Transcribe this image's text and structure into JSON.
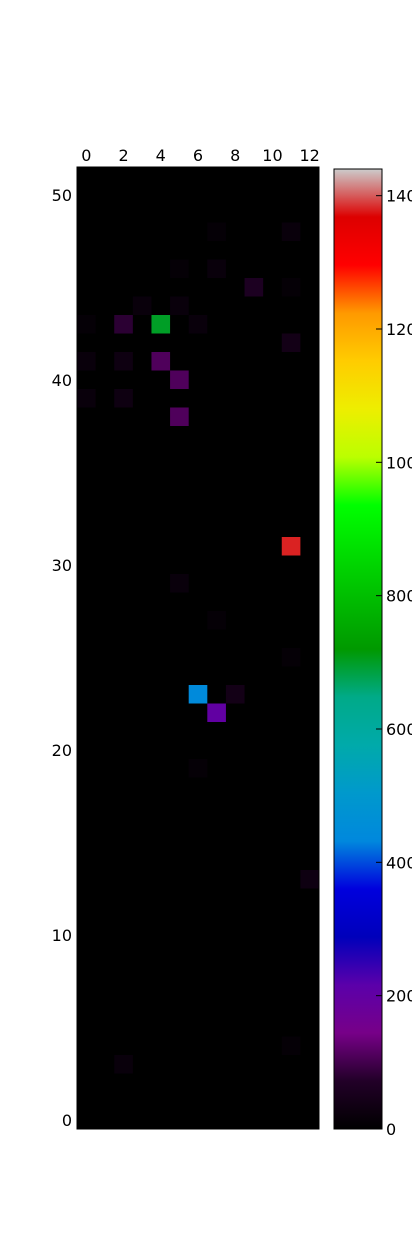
{
  "chart_data": [
    {
      "type": "heatmap",
      "title": "",
      "xlabel": "",
      "ylabel": "",
      "x_range": [
        -0.5,
        12.5
      ],
      "y_range": [
        -0.5,
        51.5
      ],
      "x_ticks": [
        "0",
        "2",
        "4",
        "6",
        "8",
        "10",
        "12"
      ],
      "y_ticks": [
        "0",
        "10",
        "20",
        "30",
        "40",
        "50"
      ],
      "x_tick_values": [
        0,
        2,
        4,
        6,
        8,
        10,
        12
      ],
      "y_tick_values": [
        0,
        10,
        20,
        30,
        40,
        50
      ],
      "origin": "lower",
      "x_axis_ticks_position": "top",
      "background_value": 0,
      "cells": [
        {
          "x": 7,
          "y": 48,
          "value": 10
        },
        {
          "x": 11,
          "y": 48,
          "value": 20
        },
        {
          "x": 5,
          "y": 46,
          "value": 10
        },
        {
          "x": 7,
          "y": 46,
          "value": 20
        },
        {
          "x": 9,
          "y": 45,
          "value": 60
        },
        {
          "x": 11,
          "y": 45,
          "value": 10
        },
        {
          "x": 3,
          "y": 44,
          "value": 20
        },
        {
          "x": 5,
          "y": 44,
          "value": 20
        },
        {
          "x": 0,
          "y": 43,
          "value": 10
        },
        {
          "x": 2,
          "y": 43,
          "value": 80
        },
        {
          "x": 4,
          "y": 43,
          "value": 700
        },
        {
          "x": 6,
          "y": 43,
          "value": 20
        },
        {
          "x": 11,
          "y": 42,
          "value": 40
        },
        {
          "x": 0,
          "y": 41,
          "value": 20
        },
        {
          "x": 2,
          "y": 41,
          "value": 30
        },
        {
          "x": 4,
          "y": 41,
          "value": 110
        },
        {
          "x": 5,
          "y": 40,
          "value": 110
        },
        {
          "x": 0,
          "y": 39,
          "value": 20
        },
        {
          "x": 2,
          "y": 39,
          "value": 30
        },
        {
          "x": 5,
          "y": 38,
          "value": 110
        },
        {
          "x": 11,
          "y": 31,
          "value": 1380
        },
        {
          "x": 5,
          "y": 29,
          "value": 20
        },
        {
          "x": 7,
          "y": 27,
          "value": 10
        },
        {
          "x": 11,
          "y": 25,
          "value": 10
        },
        {
          "x": 6,
          "y": 23,
          "value": 440
        },
        {
          "x": 8,
          "y": 23,
          "value": 40
        },
        {
          "x": 7,
          "y": 22,
          "value": 200
        },
        {
          "x": 6,
          "y": 19,
          "value": 10
        },
        {
          "x": 12,
          "y": 13,
          "value": 30
        },
        {
          "x": 11,
          "y": 4,
          "value": 10
        },
        {
          "x": 2,
          "y": 3,
          "value": 20
        }
      ]
    },
    {
      "type": "colorbar",
      "range": [
        0,
        1440
      ],
      "tick_values": [
        0,
        200,
        400,
        600,
        800,
        1000,
        1200,
        1400
      ],
      "tick_labels": [
        "0",
        "200",
        "400",
        "600",
        "800",
        "1000",
        "1200",
        "1400"
      ],
      "colormap": "nipy_spectral"
    }
  ]
}
